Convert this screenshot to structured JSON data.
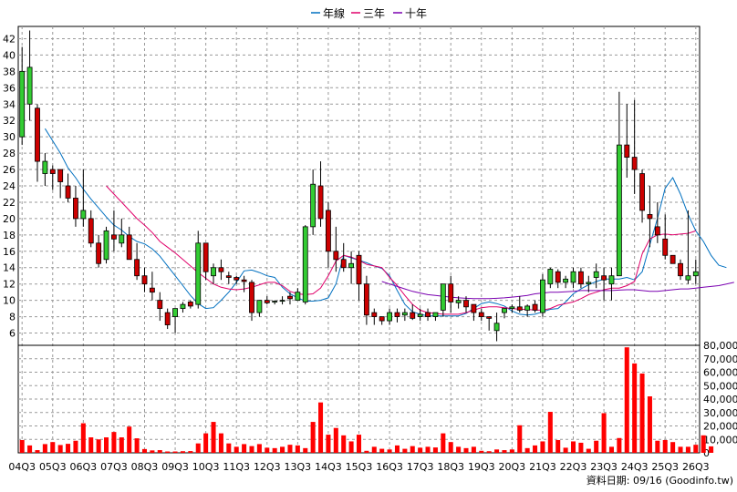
{
  "legend": [
    {
      "label": "年線",
      "color": "#0070c0"
    },
    {
      "label": "三年",
      "color": "#e0006a"
    },
    {
      "label": "十年",
      "color": "#7a00b0"
    }
  ],
  "footer": "資料日期: 09/16  (Goodinfo.tw)",
  "chart_data": {
    "type": "candlestick",
    "grid": true,
    "x_tick_labels": [
      "04Q3",
      "05Q3",
      "06Q3",
      "07Q3",
      "08Q3",
      "09Q3",
      "10Q3",
      "11Q3",
      "12Q3",
      "13Q3",
      "14Q3",
      "15Q3",
      "16Q3",
      "17Q3",
      "18Q3",
      "19Q3",
      "20Q3",
      "21Q3",
      "22Q3",
      "23Q3",
      "24Q3",
      "25Q3",
      "26Q3"
    ],
    "price_axis": {
      "ylim": [
        4.5,
        43.5
      ],
      "ticks": [
        6,
        8,
        10,
        12,
        14,
        16,
        18,
        20,
        22,
        24,
        26,
        28,
        30,
        32,
        34,
        36,
        38,
        40,
        42
      ]
    },
    "volume_axis": {
      "ylim": [
        0,
        80000
      ],
      "ticks": [
        0,
        10000,
        20000,
        30000,
        40000,
        50000,
        60000,
        70000,
        80000
      ],
      "tick_labels": [
        "0",
        "10,000",
        "20,000",
        "30,000",
        "40,000",
        "50,000",
        "60,000",
        "70,000",
        "80,000"
      ]
    },
    "ohlc_note": "quarterly candles, [open, high, low, close]",
    "ohlc": [
      [
        30,
        41,
        29,
        38
      ],
      [
        34,
        43,
        32,
        38.5
      ],
      [
        33.5,
        34,
        24.5,
        27
      ],
      [
        25.5,
        28,
        24,
        27
      ],
      [
        26,
        26.5,
        23.5,
        25.5
      ],
      [
        26,
        26,
        22.5,
        24.5
      ],
      [
        24,
        25.5,
        22,
        22.5
      ],
      [
        22.5,
        24,
        19,
        20
      ],
      [
        20,
        26,
        19,
        21
      ],
      [
        20,
        21,
        16.5,
        17
      ],
      [
        17,
        18,
        14,
        14.5
      ],
      [
        15,
        19,
        14.5,
        18.5
      ],
      [
        18,
        21,
        16,
        17.5
      ],
      [
        17,
        20,
        16.5,
        18
      ],
      [
        18,
        19,
        15,
        15
      ],
      [
        15,
        17,
        12.5,
        13
      ],
      [
        13,
        14,
        11,
        12
      ],
      [
        11.5,
        13.5,
        10,
        11
      ],
      [
        10,
        11,
        7.5,
        9
      ],
      [
        8.5,
        9,
        6.5,
        7
      ],
      [
        8,
        9,
        6,
        9
      ],
      [
        9,
        9.8,
        8.5,
        9.5
      ],
      [
        9.8,
        10,
        9,
        9.3
      ],
      [
        9.5,
        18.5,
        9,
        17
      ],
      [
        17,
        17,
        12.5,
        13.5
      ],
      [
        13,
        14.5,
        12,
        14
      ],
      [
        14,
        15,
        12.5,
        13.5
      ],
      [
        13,
        13.5,
        12,
        12.8
      ],
      [
        12.8,
        13,
        12,
        12.5
      ],
      [
        12.5,
        13,
        11,
        12.3
      ],
      [
        12.2,
        12.5,
        7.5,
        8.5
      ],
      [
        8.5,
        10,
        8,
        10
      ],
      [
        10,
        10.5,
        9.5,
        9.7
      ],
      [
        9.8,
        10,
        9.5,
        9.9
      ],
      [
        10,
        10.5,
        9.5,
        10
      ],
      [
        10.5,
        11,
        9.5,
        10.2
      ],
      [
        10,
        11.5,
        10,
        11
      ],
      [
        9.8,
        19.2,
        9.5,
        19
      ],
      [
        19,
        26,
        18,
        24.2
      ],
      [
        24,
        27,
        19,
        20
      ],
      [
        21,
        22,
        14,
        16
      ],
      [
        16,
        19,
        13.5,
        15
      ],
      [
        15,
        17,
        13.5,
        14
      ],
      [
        14,
        16,
        12,
        14.5
      ],
      [
        15.5,
        16,
        10,
        12
      ],
      [
        12,
        13,
        7,
        8.2
      ],
      [
        8.5,
        9,
        7,
        8
      ],
      [
        8,
        8,
        7,
        7.5
      ],
      [
        7.5,
        9,
        7,
        8.5
      ],
      [
        8.5,
        9,
        7.3,
        8
      ],
      [
        8.2,
        9,
        7.5,
        8.5
      ],
      [
        8.5,
        9.5,
        7.6,
        7.8
      ],
      [
        8,
        9,
        7.5,
        8.3
      ],
      [
        8.5,
        9,
        7.5,
        8
      ],
      [
        8,
        8.5,
        7.5,
        8.5
      ],
      [
        8.8,
        11.8,
        8,
        12
      ],
      [
        12,
        13,
        8.5,
        9.8
      ],
      [
        9.7,
        10.5,
        9,
        10
      ],
      [
        10,
        10.5,
        8.5,
        9.2
      ],
      [
        9.5,
        9.5,
        7.5,
        8.5
      ],
      [
        8.5,
        9,
        7.5,
        8
      ],
      [
        8,
        8,
        6.3,
        7.8
      ],
      [
        6.3,
        8.5,
        5,
        7.2
      ],
      [
        8.5,
        9,
        7.8,
        9
      ],
      [
        9,
        9.5,
        8.5,
        9.2
      ],
      [
        9.2,
        10.5,
        8.5,
        8.8
      ],
      [
        8.8,
        9.5,
        8,
        9.3
      ],
      [
        9.5,
        10,
        8.5,
        8.8
      ],
      [
        8.5,
        13.2,
        8,
        12.5
      ],
      [
        12,
        14,
        11.5,
        13.8
      ],
      [
        13.5,
        13.8,
        11.5,
        12.2
      ],
      [
        12.2,
        13,
        11.5,
        12.6
      ],
      [
        12.2,
        14,
        11.5,
        13.5
      ],
      [
        13.5,
        14,
        11.5,
        12
      ],
      [
        12,
        13,
        11,
        12.2
      ],
      [
        12.8,
        14.5,
        11.5,
        13.5
      ],
      [
        13,
        14,
        10,
        12.5
      ],
      [
        12,
        14,
        10,
        13
      ],
      [
        13,
        35.5,
        13,
        29
      ],
      [
        29,
        34,
        25,
        27.5
      ],
      [
        27.5,
        34.5,
        23,
        26
      ],
      [
        25.5,
        26,
        19.5,
        21
      ],
      [
        20.5,
        24,
        16.5,
        20
      ],
      [
        19,
        22,
        17,
        18
      ],
      [
        17.5,
        20.5,
        15,
        15.5
      ],
      [
        15.5,
        15.5,
        14.5,
        14.5
      ],
      [
        14.5,
        15,
        12.5,
        13
      ],
      [
        12.5,
        21,
        12,
        13
      ],
      [
        13,
        15,
        12,
        13.5
      ]
    ],
    "volume": [
      9500,
      5500,
      2000,
      6500,
      8000,
      5800,
      6700,
      9000,
      22000,
      11500,
      10000,
      11500,
      15500,
      11500,
      19500,
      10800,
      2800,
      1800,
      2000,
      1000,
      1000,
      1200,
      1300,
      7000,
      14500,
      23000,
      14500,
      7000,
      4500,
      6500,
      5000,
      6500,
      3800,
      3500,
      4500,
      6000,
      5500,
      3500,
      23000,
      37500,
      13500,
      18500,
      13000,
      8500,
      13500,
      1500,
      4500,
      3000,
      2500,
      5500,
      3000,
      5000,
      3800,
      4500,
      4000,
      14500,
      8000,
      4500,
      3500,
      4500,
      1500,
      1200,
      2500,
      2000,
      2500,
      20500,
      3500,
      5500,
      8500,
      30500,
      9500,
      3800,
      8500,
      7500,
      3000,
      9000,
      29500,
      4500,
      11000,
      78500,
      66500,
      59000,
      42000,
      9000,
      9500,
      8000,
      4500,
      4500,
      6000,
      13000,
      4800
    ],
    "series": [
      {
        "name": "年線",
        "color": "#0070c0",
        "start_index": 3,
        "values": [
          31,
          29.5,
          28,
          26.2,
          25,
          23.6,
          22.4,
          21.3,
          20.2,
          19.2,
          18.6,
          17.8,
          17.2,
          16.9,
          16.3,
          15.4,
          14.2,
          13,
          11.8,
          10.6,
          9.6,
          9,
          9.1,
          10,
          11,
          12.2,
          13.6,
          13.7,
          13.4,
          13,
          12.8,
          11.6,
          10.8,
          10.3,
          9.9,
          9.9,
          10,
          10.3,
          12,
          15.5,
          15.2,
          14.9,
          14.6,
          14.2,
          13.9,
          13,
          11.2,
          9.5,
          8.6,
          8.3,
          8.1,
          8.1,
          8.1,
          8.1,
          8.1,
          8.4,
          9,
          9.6,
          9.8,
          9.6,
          9.3,
          8.7,
          8.3,
          8.2,
          8.3,
          8.6,
          8.9,
          9,
          9.8,
          10.8,
          11.4,
          11.9,
          12.3,
          12.6,
          12.6,
          12.6,
          12.8,
          12.5,
          13.5,
          16.8,
          20,
          23.7,
          25,
          23,
          20.5,
          18.5,
          17.2,
          15.5,
          14.3,
          14
        ]
      },
      {
        "name": "三年",
        "color": "#e0006a",
        "start_index": 11,
        "values": [
          24,
          23,
          22,
          21,
          20,
          19.2,
          18.3,
          17.2,
          16.5,
          15.8,
          15,
          14.2,
          13.4,
          12.7,
          12,
          11.6,
          11.4,
          11.3,
          11.4,
          11.6,
          11.9,
          12.2,
          12.2,
          11.8,
          11.1,
          10.8,
          10.7,
          10.8,
          11.5,
          13,
          14.8,
          15.5,
          15.3,
          14.9,
          14.4,
          14.2,
          14,
          12.8,
          11.8,
          10.6,
          9.5,
          8.8,
          8.5,
          8.4,
          8.3,
          8.3,
          8.3,
          8.5,
          8.8,
          9.1,
          9.2,
          9.2,
          9.1,
          9,
          8.9,
          8.9,
          8.8,
          8.8,
          9,
          9.4,
          9.6,
          9.8,
          10.2,
          10.7,
          11,
          11.3,
          11.5,
          11.5,
          11.8,
          12.3,
          15.7,
          17.5,
          18,
          18.1,
          18,
          18.1,
          18.2,
          18.5
        ]
      },
      {
        "name": "十年",
        "color": "#7a00b0",
        "start_index": 47,
        "values": [
          12.3,
          12,
          11.7,
          11.4,
          11.1,
          10.9,
          10.7,
          10.6,
          10.5,
          10.4,
          10.3,
          10.25,
          10.2,
          10.2,
          10.2,
          10.25,
          10.3,
          10.4,
          10.5,
          10.6,
          10.8,
          10.9,
          11,
          11,
          11.05,
          11.1,
          11.2,
          11.2,
          11.2,
          11.2,
          11.2,
          11.25,
          11.3,
          11.3,
          11.2,
          11.1,
          11.1,
          11.2,
          11.3,
          11.4,
          11.4,
          11.5,
          11.6,
          11.7,
          11.8,
          12,
          12.2
        ]
      }
    ]
  }
}
